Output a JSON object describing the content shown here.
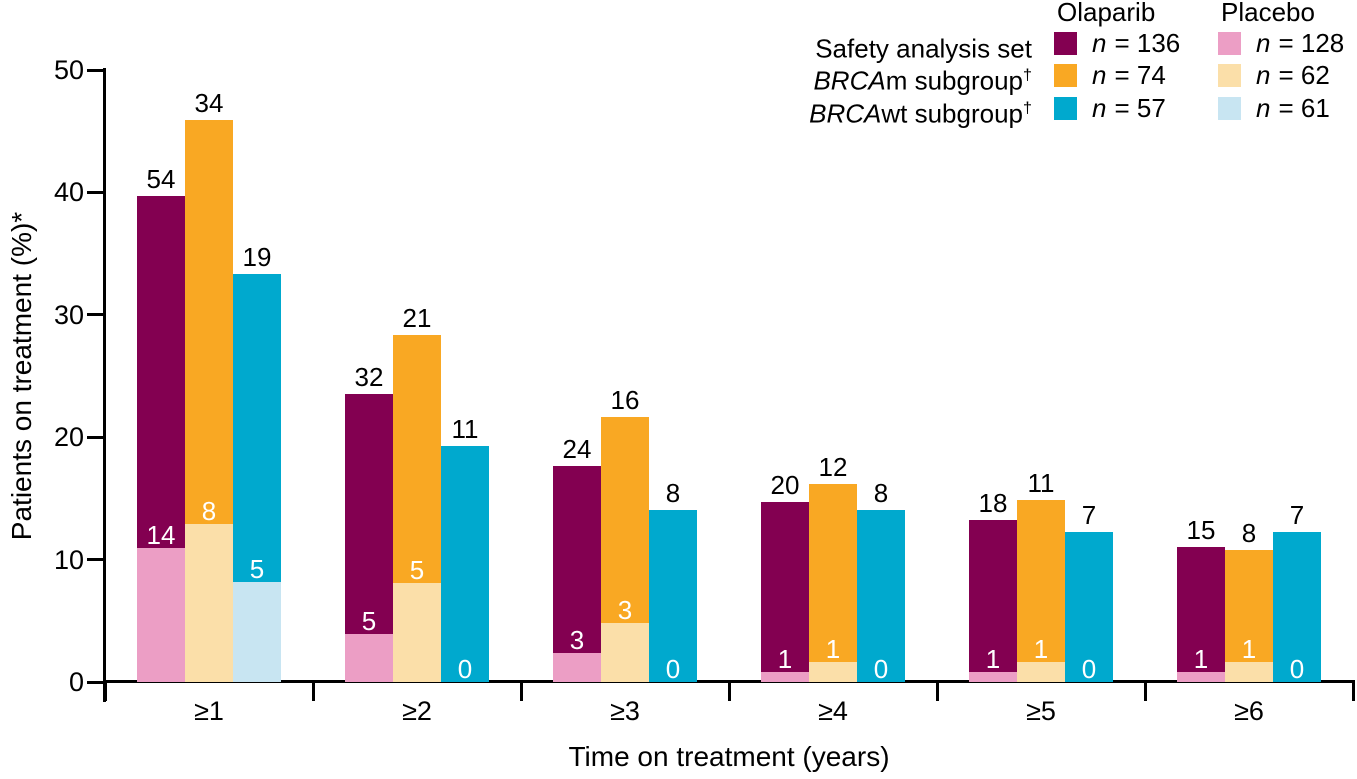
{
  "figure": {
    "background": "#FFFFFF",
    "text_color": "#000000"
  },
  "chart_data": {
    "type": "bar",
    "title": "",
    "xlabel": "Time on treatment (years)",
    "ylabel": "Patients on treatment (%)*",
    "ylim": [
      0,
      50
    ],
    "yticks": [
      0,
      10,
      20,
      30,
      40,
      50
    ],
    "categories": [
      "≥1",
      "≥2",
      "≥3",
      "≥4",
      "≥5",
      "≥6"
    ],
    "grid": false,
    "legend_position": "top-right",
    "bar_style": "placebo bar of each pair is overlaid in front of the olaparib bar; bar height (%) = count / n × 100; labels show patient counts",
    "series": [
      {
        "name": "Safety analysis set – Olaparib",
        "n": 136,
        "color": "#830051",
        "label_color": "#000000",
        "counts": [
          54,
          32,
          24,
          20,
          18,
          15
        ],
        "percents": [
          39.7,
          23.5,
          17.6,
          14.7,
          13.2,
          11.0
        ]
      },
      {
        "name": "Safety analysis set – Placebo",
        "n": 128,
        "color": "#EC9EC5",
        "label_color": "#FFFFFF",
        "counts": [
          14,
          5,
          3,
          1,
          1,
          1
        ],
        "percents": [
          10.9,
          3.9,
          2.3,
          0.8,
          0.8,
          0.8
        ]
      },
      {
        "name": "BRCAm subgroup – Olaparib",
        "n": 74,
        "color": "#F9A823",
        "label_color": "#000000",
        "counts": [
          34,
          21,
          16,
          12,
          11,
          8
        ],
        "percents": [
          45.9,
          28.4,
          21.6,
          16.2,
          14.9,
          10.8
        ]
      },
      {
        "name": "BRCAm subgroup – Placebo",
        "n": 62,
        "color": "#FBDFA9",
        "label_color": "#FFFFFF",
        "counts": [
          8,
          5,
          3,
          1,
          1,
          1
        ],
        "percents": [
          12.9,
          8.1,
          4.8,
          1.6,
          1.6,
          1.6
        ]
      },
      {
        "name": "BRCAwt subgroup – Olaparib",
        "n": 57,
        "color": "#00A9CE",
        "label_color": "#000000",
        "counts": [
          19,
          11,
          8,
          8,
          7,
          7
        ],
        "percents": [
          33.3,
          19.3,
          14.0,
          14.0,
          12.3,
          12.3
        ]
      },
      {
        "name": "BRCAwt subgroup – Placebo",
        "n": 61,
        "color": "#C8E5F2",
        "label_color": "#FFFFFF",
        "counts": [
          5,
          0,
          0,
          0,
          0,
          0
        ],
        "percents": [
          8.2,
          0,
          0,
          0,
          0,
          0
        ]
      }
    ]
  },
  "legend": {
    "col_headers": [
      "Olaparib",
      "Placebo"
    ],
    "rows": [
      {
        "italic": "",
        "label": "Safety analysis set",
        "dagger": "",
        "olaparib": {
          "n": "n",
          "value": "= 136",
          "color": "#830051"
        },
        "placebo": {
          "n": "n",
          "value": "= 128",
          "color": "#EC9EC5"
        }
      },
      {
        "italic": "BRCA",
        "label": "m subgroup",
        "dagger": "†",
        "olaparib": {
          "n": "n",
          "value": "= 74",
          "color": "#F9A823"
        },
        "placebo": {
          "n": "n",
          "value": "= 62",
          "color": "#FBDFA9"
        }
      },
      {
        "italic": "BRCA",
        "label": "wt subgroup",
        "dagger": "†",
        "olaparib": {
          "n": "n",
          "value": "= 57",
          "color": "#00A9CE"
        },
        "placebo": {
          "n": "n",
          "value": "= 61",
          "color": "#C8E5F2"
        }
      }
    ]
  }
}
